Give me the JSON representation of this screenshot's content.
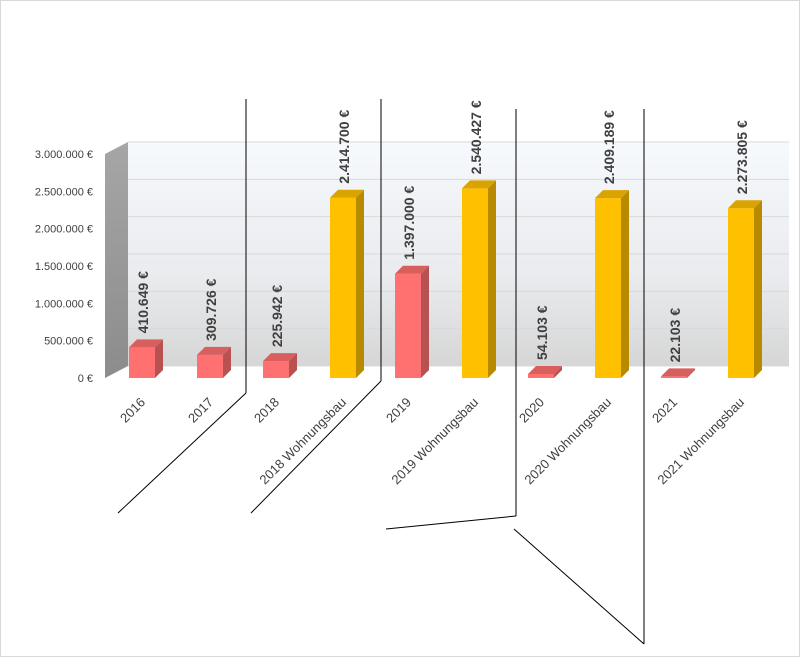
{
  "chart_data": {
    "type": "bar",
    "title": "",
    "xlabel": "",
    "ylabel": "",
    "ylim": [
      0,
      3000000
    ],
    "yticks": [
      0,
      500000,
      1000000,
      1500000,
      2000000,
      2500000,
      3000000
    ],
    "ytick_labels": [
      "0 €",
      "500.000 €",
      "1.000.000 €",
      "1.500.000 €",
      "2.000.000 €",
      "2.500.000 €",
      "3.000.000 €"
    ],
    "grid": true,
    "legend": "none",
    "categories": [
      "2016",
      "2017",
      "2018",
      "2018 Wohnungsbau",
      "2019",
      "2019 Wohnungsbau",
      "2020",
      "2020 Wohnungsbau",
      "2021",
      "2021 Wohnungsbau"
    ],
    "values": [
      410649,
      309726,
      225942,
      2414700,
      1397000,
      2540427,
      54103,
      2409189,
      22103,
      2273805
    ],
    "data_labels": [
      "410.649 €",
      "309.726 €",
      "225.942 €",
      "2.414.700 €",
      "1.397.000 €",
      "2.540.427 €",
      "54.103 €",
      "2.409.189 €",
      "22.103 €",
      "2.273.805 €"
    ],
    "bar_colors": [
      "#ff7070",
      "#ff7070",
      "#ff7070",
      "#ffc000",
      "#ff7070",
      "#ffc000",
      "#ff7070",
      "#ffc000",
      "#ff7070",
      "#ffc000"
    ],
    "colors": {
      "red_bar": "#ff7070",
      "yellow_bar": "#ffc000",
      "text": "#404040",
      "gridline": "#d9d9d9"
    }
  }
}
